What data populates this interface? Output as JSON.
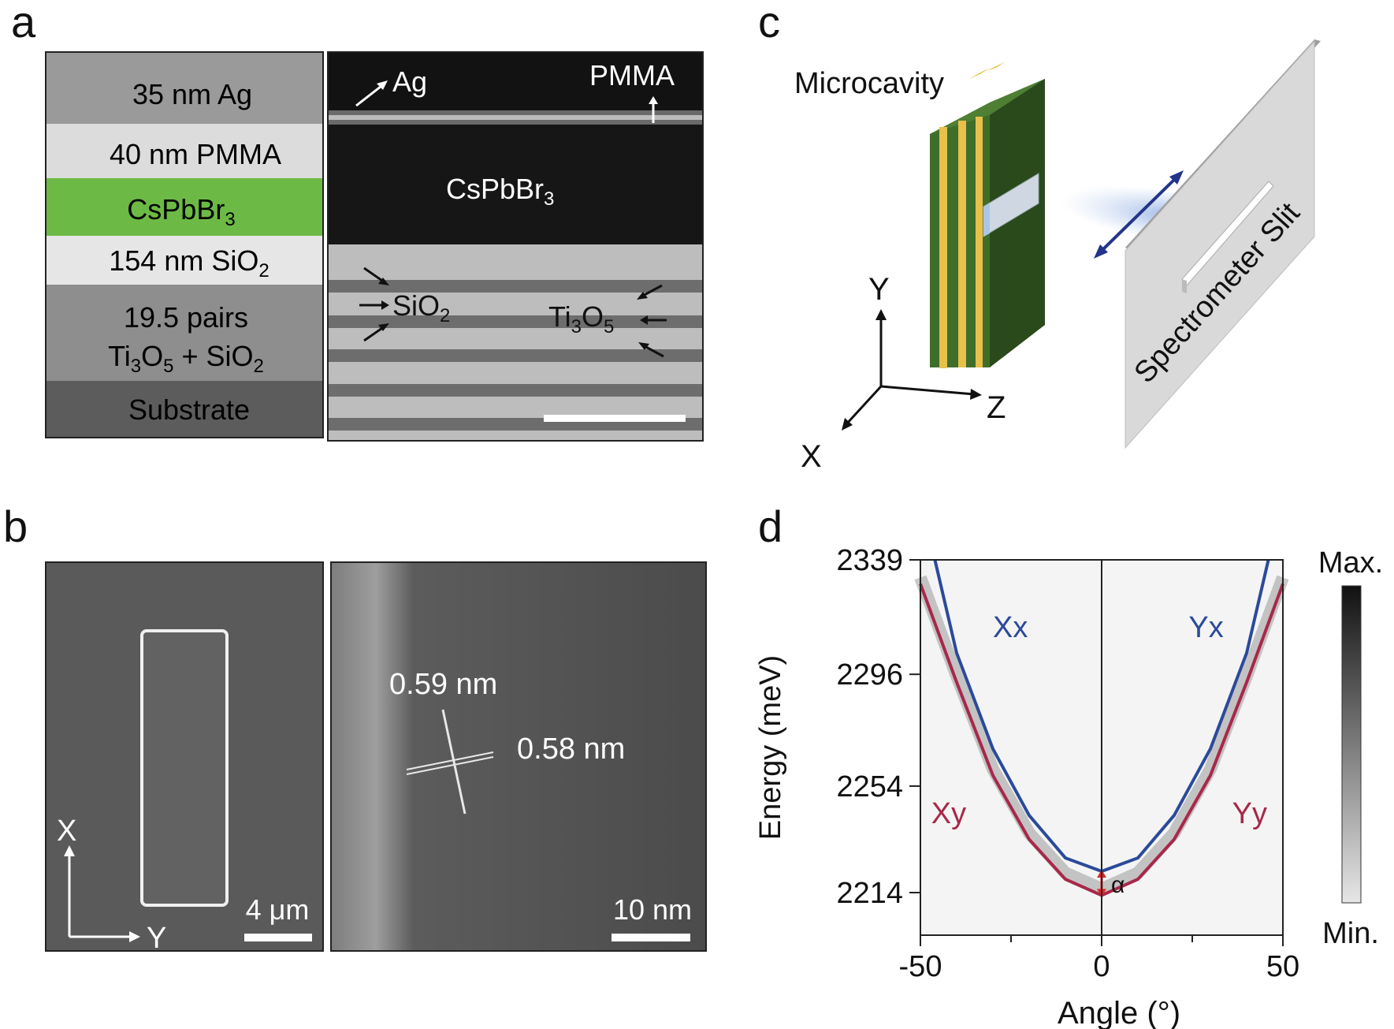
{
  "panels": {
    "a": {
      "letter": "a",
      "layers": [
        {
          "text": "35 nm Ag",
          "color": "#9a9a9a"
        },
        {
          "text": "40 nm PMMA",
          "color": "#dcdcdc"
        },
        {
          "text": "CsPbBr",
          "sub": "3",
          "color": "#6cba45"
        },
        {
          "text": "154 nm SiO",
          "sub": "2",
          "color": "#e4e4e4"
        },
        {
          "text": "19.5 pairs",
          "line2": "Ti",
          "line2_sub1": "3",
          "line2_mid": "O",
          "line2_sub2": "5",
          "line2_end": " + SiO",
          "line2_sub3": "2",
          "color": "#8e8e8e"
        },
        {
          "text": "Substrate",
          "color": "#5c5c5c"
        }
      ],
      "tem_labels": {
        "ag": "Ag",
        "pmma": "PMMA",
        "cspbbr": "CsPbBr",
        "cspbbr_sub": "3",
        "sio2": "SiO",
        "sio2_sub": "2",
        "ti3o5_a": "Ti",
        "ti3o5_sub1": "3",
        "ti3o5_b": "O",
        "ti3o5_sub2": "5"
      }
    },
    "b": {
      "letter": "b",
      "axis_x": "X",
      "axis_y": "Y",
      "scale_left": "4 μm",
      "lattice_1": "0.59 nm",
      "lattice_2": "0.58 nm",
      "scale_right": "10 nm"
    },
    "c": {
      "letter": "c",
      "microcavity": "Microcavity",
      "slit": "Spectrometer Slit",
      "axis_x": "X",
      "axis_y": "Y",
      "axis_z": "Z",
      "colors": {
        "cavity": "#3f6e2a",
        "stripe": "#e8c04a"
      }
    },
    "d": {
      "letter": "d",
      "colorbar_max": "Max.",
      "colorbar_min": "Min.",
      "alpha": "α"
    }
  },
  "chart_data": {
    "type": "line",
    "xlabel": "Angle (°)",
    "ylabel": "Energy (meV)",
    "xlim": [
      -50,
      50
    ],
    "ylim": [
      2198,
      2339
    ],
    "x_ticks": [
      -50,
      0,
      50
    ],
    "y_ticks": [
      2214,
      2254,
      2296,
      2339
    ],
    "series": [
      {
        "name": "Xx",
        "color": "#2b4a9a",
        "points": [
          [
            -46,
            2339
          ],
          [
            -40,
            2304
          ],
          [
            -30,
            2268
          ],
          [
            -20,
            2243
          ],
          [
            -10,
            2227
          ],
          [
            0,
            2222
          ],
          [
            10,
            2227
          ],
          [
            20,
            2243
          ],
          [
            30,
            2268
          ],
          [
            40,
            2304
          ],
          [
            46,
            2339
          ]
        ]
      },
      {
        "name": "Yx",
        "color": "#2b4a9a"
      },
      {
        "name": "Xy",
        "color": "#a8284a",
        "points": [
          [
            -50,
            2330
          ],
          [
            -40,
            2293
          ],
          [
            -30,
            2258
          ],
          [
            -20,
            2234
          ],
          [
            -10,
            2219
          ],
          [
            0,
            2213
          ],
          [
            10,
            2219
          ],
          [
            20,
            2234
          ],
          [
            30,
            2258
          ],
          [
            40,
            2293
          ],
          [
            50,
            2330
          ]
        ]
      },
      {
        "name": "Yy",
        "color": "#a8284a"
      }
    ],
    "split_label": "α"
  }
}
